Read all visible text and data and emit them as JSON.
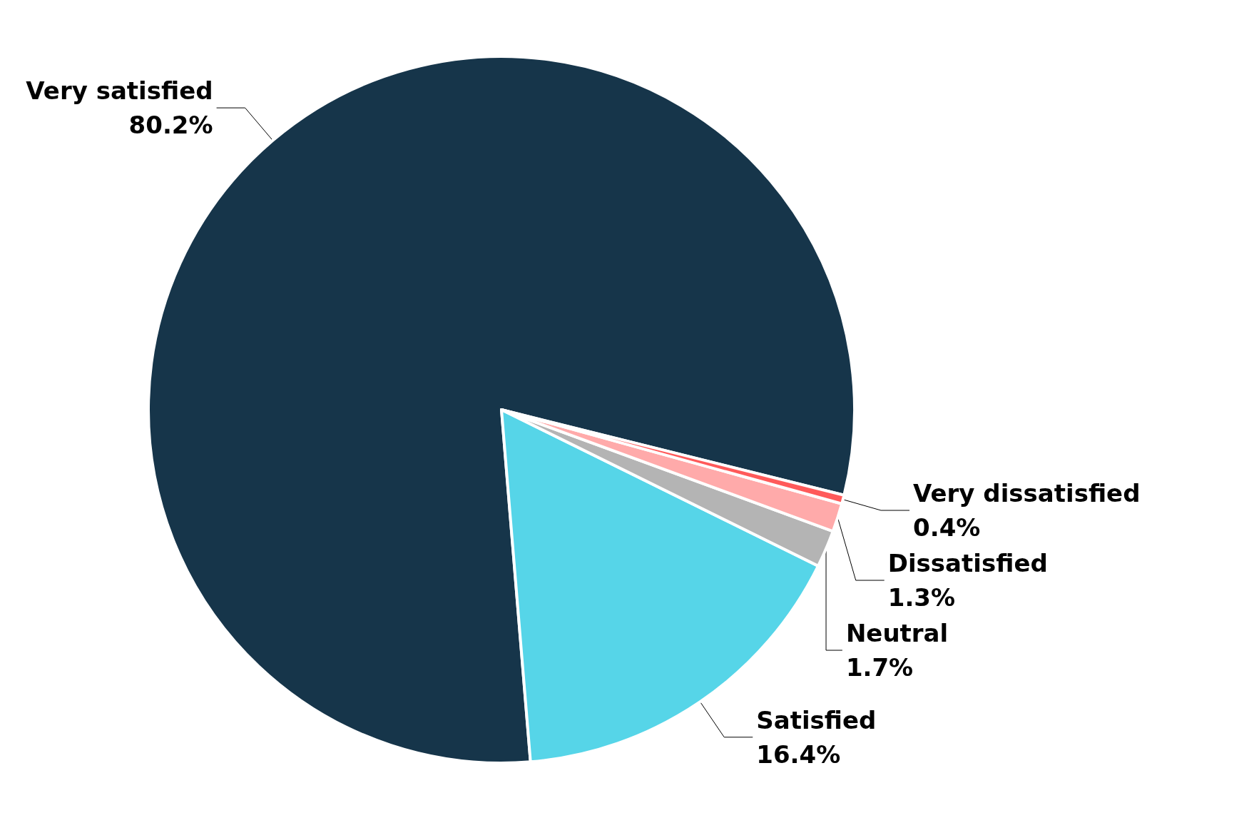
{
  "chart_data": {
    "type": "pie",
    "categories": [
      "Very satisfied",
      "Satisfied",
      "Neutral",
      "Dissatisfied",
      "Very dissatisfied"
    ],
    "values": [
      80.2,
      16.4,
      1.7,
      1.3,
      0.4
    ],
    "colors": [
      "#16354a",
      "#56d5e8",
      "#b4b4b4",
      "#ffaaaa",
      "#ff5a5a"
    ],
    "value_labels": [
      "80.2%",
      "16.4%",
      "1.7%",
      "1.3%",
      "0.4%"
    ],
    "legend": false
  }
}
